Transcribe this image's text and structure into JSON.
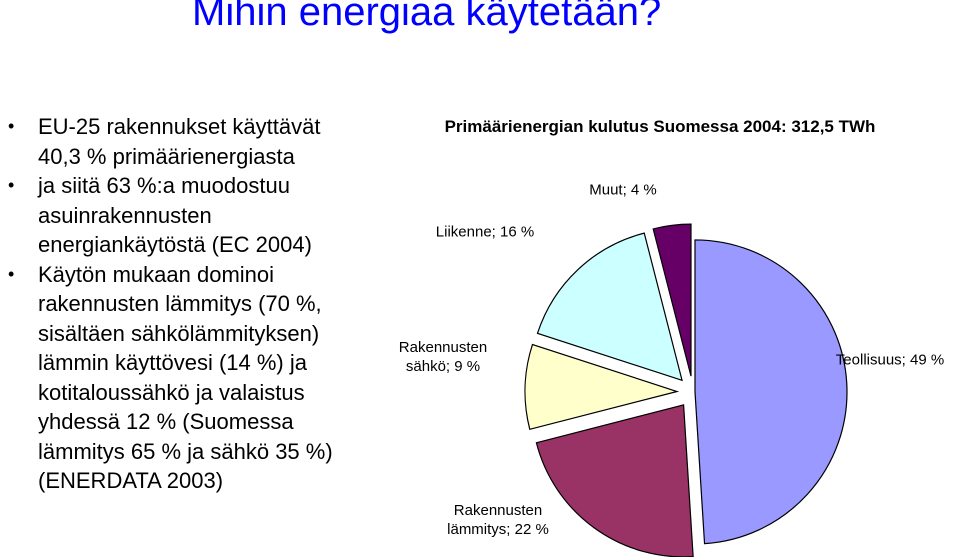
{
  "title": "Mihin energiaa käytetään?",
  "bullets": [
    "EU-25 rakennukset käyttävät 40,3 % primäärienergiasta",
    "ja siitä 63 %:a muodostuu asuinrakennusten energiankäytöstä (EC 2004)",
    "Käytön mukaan dominoi rakennusten lämmitys (70 %, sisältäen sähkölämmityksen) lämmin käyttövesi (14 %) ja kotitaloussähkö ja valaistus yhdessä 12 % (Suomessa lämmitys 65 % ja sähkö 35 %) (ENERDATA 2003)"
  ],
  "chart_data": {
    "type": "pie",
    "title": "Primäärienergian kulutus Suomessa 2004: 312,5 TWh",
    "values": [
      49,
      22,
      9,
      16,
      4
    ],
    "value_labels": [
      "Teollisuus; 49 %",
      "Rakennusten lämmitys; 22 %",
      "Rakennusten sähkö; 9 %",
      "Liikenne; 16 %",
      "Muut; 4 %"
    ],
    "colors": [
      "#9999ff",
      "#993366",
      "#ffffcc",
      "#ccffff",
      "#660066"
    ]
  }
}
